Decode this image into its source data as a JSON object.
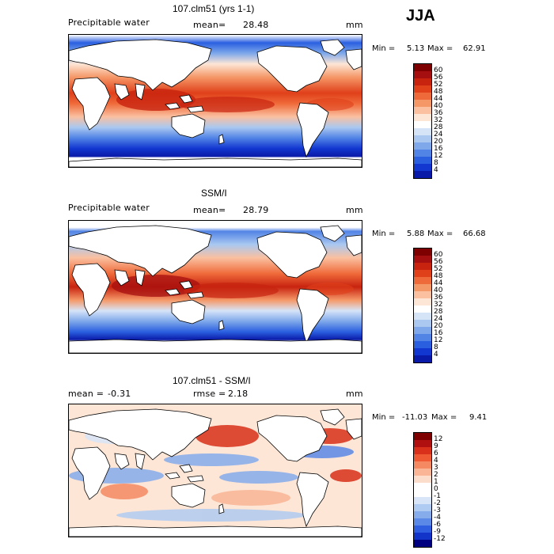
{
  "season": "JJA",
  "panels": [
    {
      "title": "107.clm51 (yrs 1-1)",
      "left_label": "Precipitable water",
      "stat_label": "mean=",
      "stat_value": "28.48",
      "unit": "mm",
      "min_label": "Min =",
      "min_value": "5.13",
      "max_label": "Max =",
      "max_value": "62.91",
      "colorbar_labels": [
        "60",
        "56",
        "52",
        "48",
        "44",
        "40",
        "36",
        "32",
        "28",
        "24",
        "20",
        "16",
        "12",
        "8",
        "4"
      ]
    },
    {
      "title": "SSM/I",
      "left_label": "Precipitable water",
      "stat_label": "mean=",
      "stat_value": "28.79",
      "unit": "mm",
      "min_label": "Min =",
      "min_value": "5.88",
      "max_label": "Max =",
      "max_value": "66.68",
      "colorbar_labels": [
        "60",
        "56",
        "52",
        "48",
        "44",
        "40",
        "36",
        "32",
        "28",
        "24",
        "20",
        "16",
        "12",
        "8",
        "4"
      ]
    },
    {
      "title": "107.clm51 - SSM/I",
      "left_label": "mean =",
      "left_value": "-0.31",
      "stat_label": "rmse =",
      "stat_value": "2.18",
      "unit": "mm",
      "min_label": "Min =",
      "min_value": "-11.03",
      "max_label": "Max =",
      "max_value": "9.41",
      "colorbar_labels": [
        "12",
        "9",
        "6",
        "4",
        "3",
        "2",
        "1",
        "0",
        "-1",
        "-2",
        "-3",
        "-4",
        "-6",
        "-9",
        "-12"
      ]
    }
  ],
  "colors": {
    "abs_scale": [
      "#7f0000",
      "#a50f0f",
      "#c8230f",
      "#e0401a",
      "#ef6a3a",
      "#f59868",
      "#fac0a0",
      "#fde6d6",
      "#ffffff",
      "#d6e4f8",
      "#aac8f0",
      "#7ea8ea",
      "#5284e6",
      "#2a5fe0",
      "#1237d0",
      "#0a1aa8",
      "#000080"
    ],
    "diff_scale": [
      "#7f0000",
      "#b01010",
      "#d8301a",
      "#ef5a35",
      "#f58a62",
      "#f9b596",
      "#fcdccb",
      "#ffffff",
      "#ffffff",
      "#d8e5f9",
      "#b0cbf2",
      "#86acec",
      "#5a89e7",
      "#2f5fe0",
      "#1234c8",
      "#000080"
    ],
    "land": "#ffffff",
    "coast": "#000000"
  }
}
